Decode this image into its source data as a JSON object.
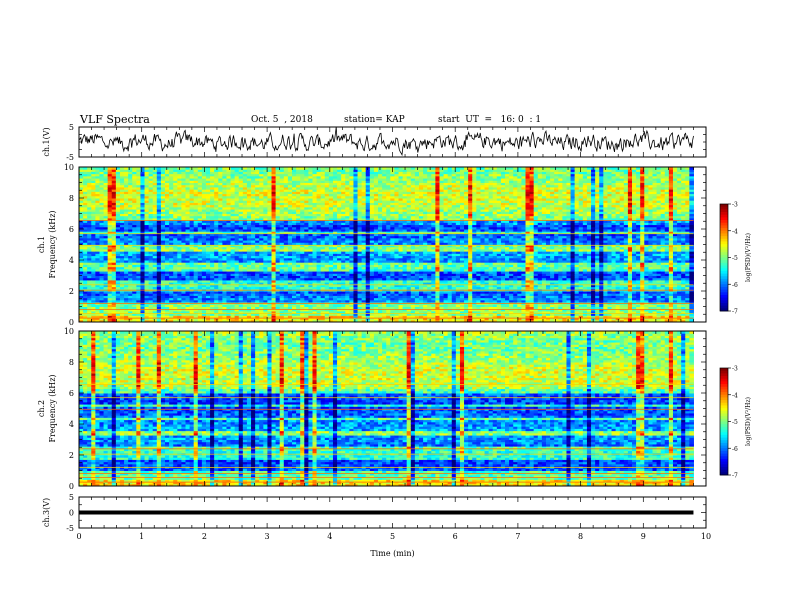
{
  "header": {
    "title": "VLF Spectra",
    "date": "Oct. 5  , 2018",
    "station": "station= KAP",
    "start": "start  UT  =   16: 0  : 1"
  },
  "chart_data": [
    {
      "type": "line",
      "ylabel": "ch.1(V)",
      "ylim": [
        -5,
        5
      ],
      "y_ticks": [
        5,
        -5
      ],
      "xlim": [
        0,
        10
      ],
      "series": [
        {
          "x_range": [
            0,
            9.8
          ],
          "mean": 0.0,
          "noise_amplitude": 2.0
        }
      ]
    },
    {
      "type": "heatmap",
      "ylabel_top": "ch.1",
      "ylabel": "Frequency  (kHz)",
      "ylim": [
        0,
        10
      ],
      "y_ticks": [
        0,
        2,
        4,
        6,
        8,
        10
      ],
      "xlim": [
        0,
        10
      ],
      "data_x_range": [
        0,
        9.8
      ],
      "colorbar": {
        "label": "log(PSD)(V²/Hz)",
        "range": [
          -7,
          -3
        ],
        "ticks": [
          -3,
          -4,
          -5,
          -6,
          -7
        ]
      }
    },
    {
      "type": "heatmap",
      "ylabel_top": "ch.2",
      "ylabel": "Frequency  (kHz)",
      "ylim": [
        0,
        10
      ],
      "y_ticks": [
        0,
        2,
        4,
        6,
        8,
        10
      ],
      "xlim": [
        0,
        10
      ],
      "data_x_range": [
        0,
        9.8
      ],
      "colorbar": {
        "label": "log(PSD)(V²/Hz)",
        "range": [
          -7,
          -3
        ],
        "ticks": [
          -3,
          -4,
          -5,
          -6,
          -7
        ]
      }
    },
    {
      "type": "line",
      "ylabel": "ch.3(V)",
      "ylim": [
        -5,
        5
      ],
      "y_ticks": [
        5,
        0,
        -5
      ],
      "xlim": [
        0,
        10
      ],
      "series": [
        {
          "x_range": [
            0,
            9.8
          ],
          "constant": 0.0
        }
      ]
    }
  ],
  "x_axis": {
    "label": "Time  (min)",
    "ticks": [
      0,
      1,
      2,
      3,
      4,
      5,
      6,
      7,
      8,
      9,
      10
    ]
  }
}
